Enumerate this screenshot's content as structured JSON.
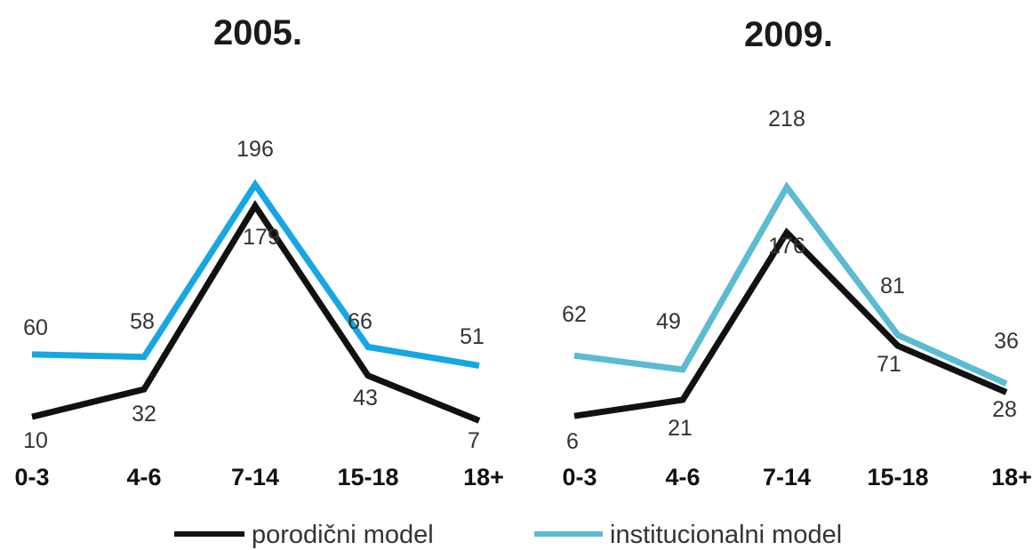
{
  "chart_data": [
    {
      "type": "line",
      "title": "2005.",
      "categories": [
        "0-3",
        "4-6",
        "7-14",
        "15-18",
        "18+"
      ],
      "series": [
        {
          "name": "porodični model",
          "color": "#111111",
          "values": [
            10,
            32,
            179,
            43,
            7
          ]
        },
        {
          "name": "institucionalni model",
          "color": "#16a7e3",
          "values": [
            60,
            58,
            196,
            66,
            51
          ]
        }
      ],
      "ylim": [
        0,
        230
      ],
      "grid": false
    },
    {
      "type": "line",
      "title": "2009.",
      "categories": [
        "0-3",
        "4-6",
        "7-14",
        "15-18",
        "18+"
      ],
      "series": [
        {
          "name": "porodični model",
          "color": "#111111",
          "values": [
            6,
            21,
            176,
            71,
            28
          ]
        },
        {
          "name": "institucionalni model",
          "color": "#5bbbd2",
          "values": [
            62,
            49,
            218,
            81,
            36
          ]
        }
      ],
      "ylim": [
        0,
        230
      ],
      "grid": false
    }
  ],
  "legend": {
    "placement": "bottom",
    "items": [
      {
        "label": "porodični model",
        "color": "#111111"
      },
      {
        "label": "institucionalni model",
        "color": "#5bbbd2"
      }
    ]
  }
}
